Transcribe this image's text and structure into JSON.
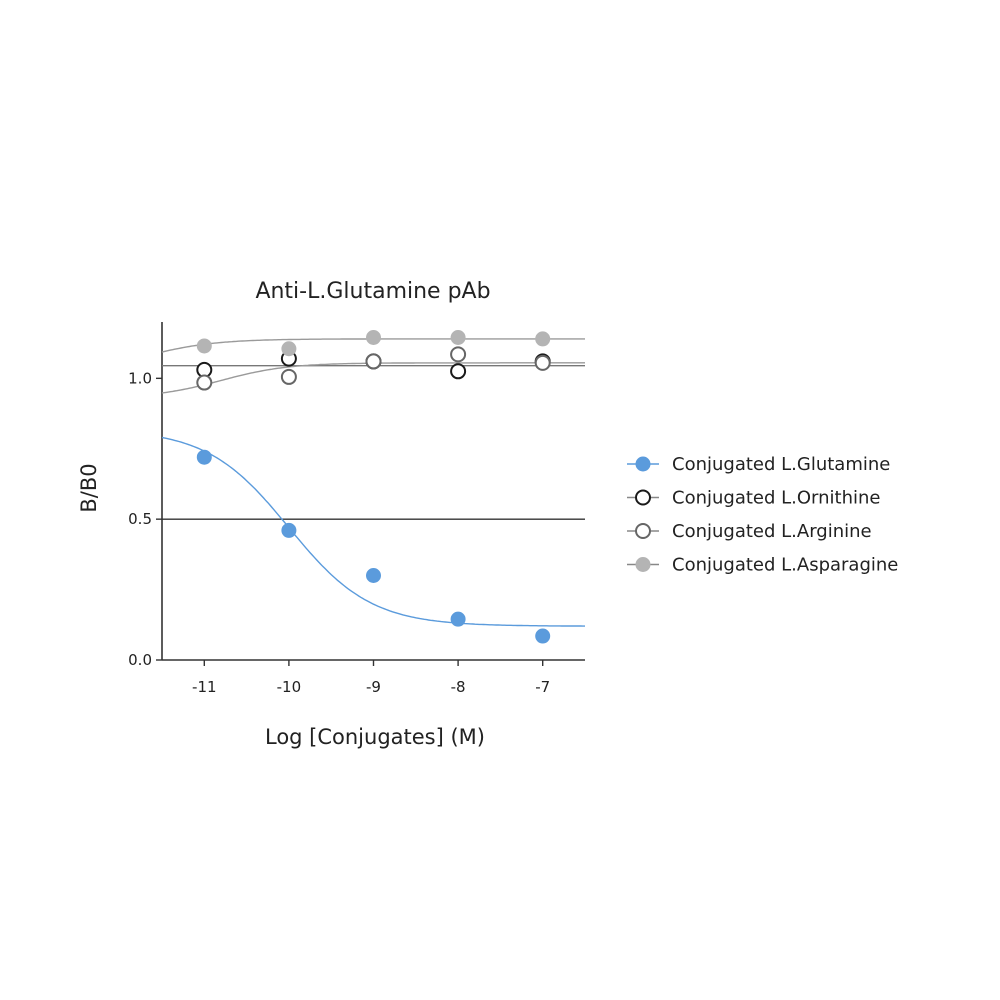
{
  "chart_data": {
    "type": "scatter",
    "title": "Anti-L.Glutamine pAb",
    "xlabel": "Log [Conjugates] (M)",
    "ylabel": "B/B0",
    "xlim": [
      -11.5,
      -6.5
    ],
    "ylim": [
      0,
      1.2
    ],
    "xticks": [
      -11,
      -10,
      -9,
      -8,
      -7
    ],
    "xtick_labels": [
      "-11",
      "-10",
      "-9",
      "-8",
      "-7"
    ],
    "yticks": [
      0,
      0.5,
      1.0
    ],
    "ytick_labels": [
      "0.0",
      "0.5",
      "1.0"
    ],
    "reference_line": 0.5,
    "grid": false,
    "legend_position": "right",
    "series": [
      {
        "name": "Conjugated L.Glutamine",
        "marker": "filled",
        "color": "#5b9bdc",
        "x": [
          -11,
          -10,
          -9,
          -8,
          -7
        ],
        "y": [
          0.72,
          0.46,
          0.3,
          0.145,
          0.085
        ],
        "fit": {
          "bottom": 0.12,
          "top": 0.82,
          "log_ec50": -10.0,
          "hill": -0.9
        }
      },
      {
        "name": "Conjugated L.Ornithine",
        "marker": "open",
        "color": "#1a1a1a",
        "x": [
          -11,
          -10,
          -9,
          -8,
          -7
        ],
        "y": [
          1.03,
          1.07,
          1.06,
          1.025,
          1.06
        ],
        "fit": {
          "bottom": 1.045,
          "top": 1.045,
          "log_ec50": -9.0,
          "hill": 1.0
        }
      },
      {
        "name": "Conjugated L.Arginine",
        "marker": "open",
        "color": "#666666",
        "x": [
          -11,
          -10,
          -9,
          -8,
          -7
        ],
        "y": [
          0.985,
          1.005,
          1.06,
          1.085,
          1.055
        ],
        "fit": {
          "bottom": 0.93,
          "top": 1.055,
          "log_ec50": -10.8,
          "hill": 1.1
        }
      },
      {
        "name": "Conjugated L.Asparagine",
        "marker": "filled",
        "color": "#b4b4b4",
        "x": [
          -11,
          -10,
          -9,
          -8,
          -7
        ],
        "y": [
          1.115,
          1.105,
          1.145,
          1.145,
          1.14
        ],
        "fit": {
          "bottom": 1.0,
          "top": 1.14,
          "log_ec50": -11.8,
          "hill": 1.0
        }
      }
    ]
  }
}
